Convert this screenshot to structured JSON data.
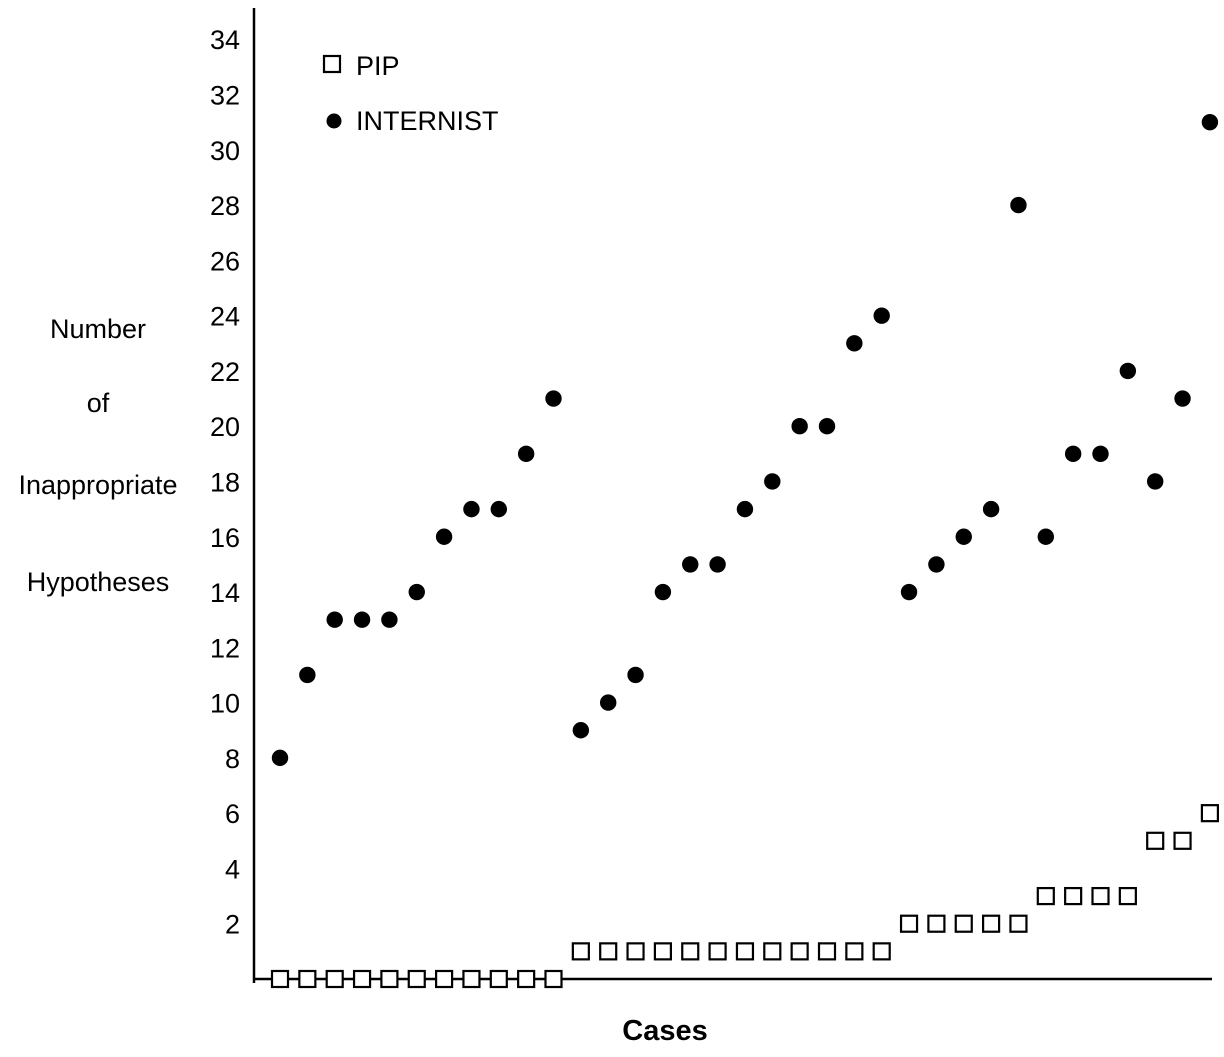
{
  "chart_data": {
    "type": "scatter",
    "title": "",
    "xlabel": "Cases",
    "ylabel_lines": [
      "Number",
      "of",
      "Inappropriate",
      "Hypotheses"
    ],
    "ylim": [
      0,
      35
    ],
    "yticks": [
      2,
      4,
      6,
      8,
      10,
      12,
      14,
      16,
      18,
      20,
      22,
      24,
      26,
      28,
      30,
      32,
      34
    ],
    "grid": false,
    "legend_position": "top-left",
    "x": [
      1,
      2,
      3,
      4,
      5,
      6,
      7,
      8,
      9,
      10,
      11,
      12,
      13,
      14,
      15,
      16,
      17,
      18,
      19,
      20,
      21,
      22,
      23,
      24,
      25,
      26,
      27,
      28,
      29,
      30,
      31,
      32,
      33,
      34,
      35
    ],
    "series": [
      {
        "name": "PIP",
        "marker": "open-square",
        "values": [
          0,
          0,
          0,
          0,
          0,
          0,
          0,
          0,
          0,
          0,
          0,
          1,
          1,
          1,
          1,
          1,
          1,
          1,
          1,
          1,
          1,
          1,
          1,
          2,
          2,
          2,
          2,
          2,
          3,
          3,
          3,
          3,
          5,
          5,
          6
        ]
      },
      {
        "name": "INTERNIST",
        "marker": "filled-circle",
        "values": [
          8,
          11,
          13,
          13,
          13,
          14,
          16,
          17,
          17,
          19,
          21,
          9,
          10,
          11,
          14,
          15,
          15,
          17,
          18,
          20,
          20,
          23,
          24,
          14,
          15,
          16,
          17,
          28,
          16,
          19,
          19,
          22,
          18,
          21,
          31
        ]
      }
    ]
  }
}
